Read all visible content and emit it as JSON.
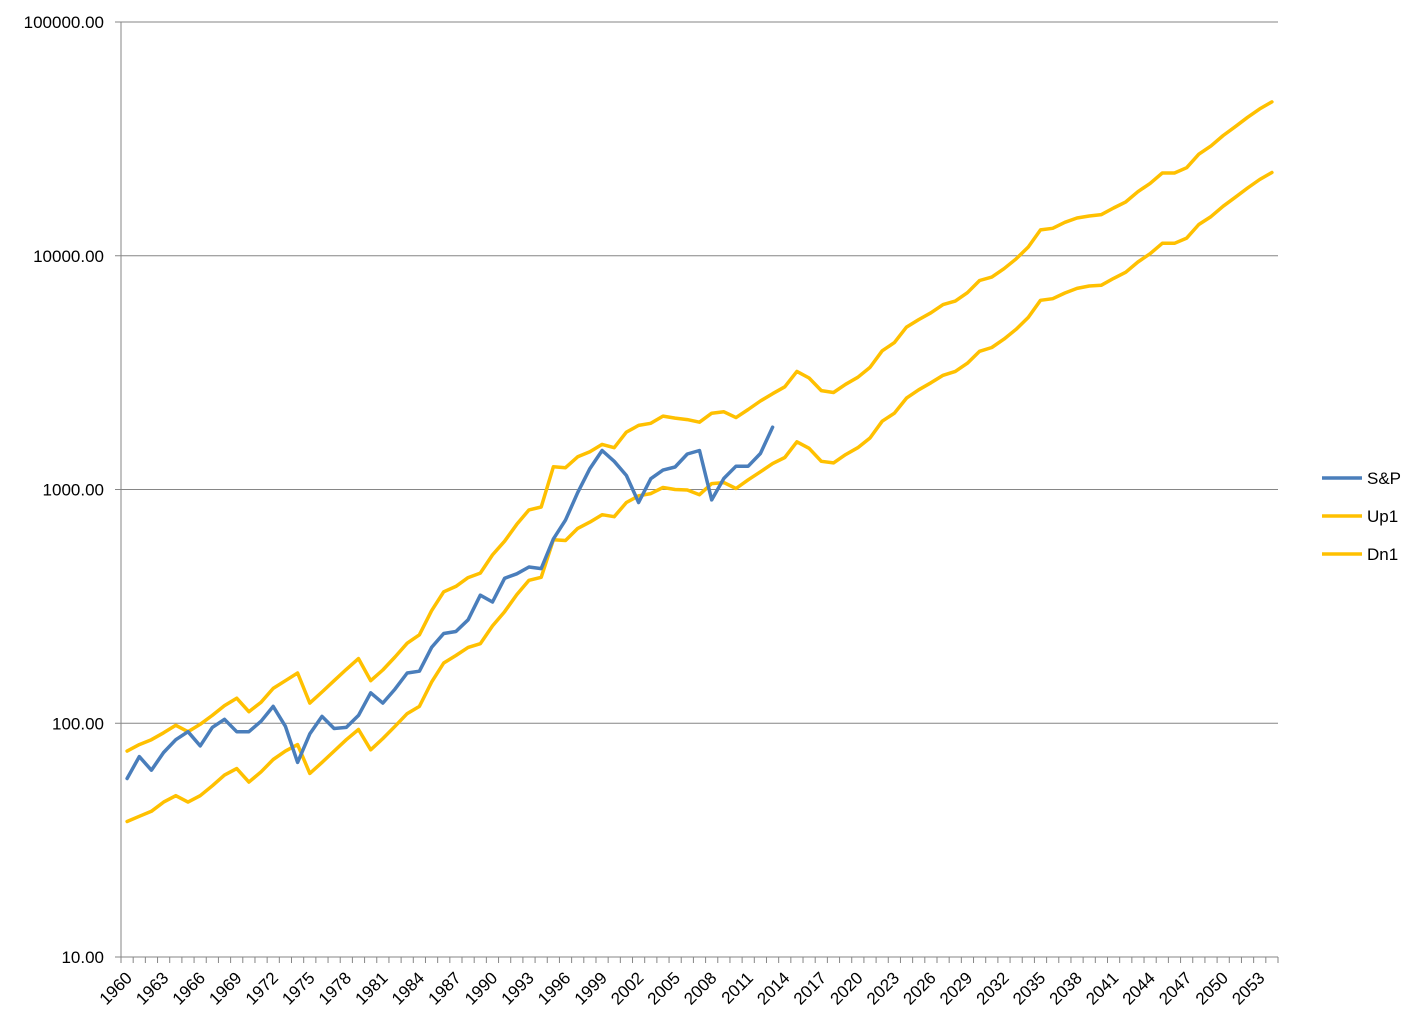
{
  "chart_data": {
    "type": "line",
    "title": "",
    "xlabel": "",
    "ylabel": "",
    "y_scale": "log",
    "ylim": [
      10,
      100000
    ],
    "y_ticks": [
      "10.00",
      "100.00",
      "1000.00",
      "10000.00",
      "100000.00"
    ],
    "y_tick_values": [
      10,
      100,
      1000,
      10000,
      100000
    ],
    "x_start": 1960,
    "x_end": 2054,
    "x_tick_labels": [
      "1960",
      "1963",
      "1966",
      "1969",
      "1972",
      "1975",
      "1978",
      "1981",
      "1984",
      "1987",
      "1990",
      "1993",
      "1996",
      "1999",
      "2002",
      "2005",
      "2008",
      "2011",
      "2014",
      "2017",
      "2020",
      "2023",
      "2026",
      "2029",
      "2032",
      "2035",
      "2038",
      "2041",
      "2044",
      "2047",
      "2050",
      "2053"
    ],
    "grid": "horizontal",
    "legend_position": "right",
    "series": [
      {
        "name": "S&P",
        "color": "#4a7ebb",
        "x": [
          1960,
          1961,
          1962,
          1963,
          1964,
          1965,
          1966,
          1967,
          1968,
          1969,
          1970,
          1971,
          1972,
          1973,
          1974,
          1975,
          1976,
          1977,
          1978,
          1979,
          1980,
          1981,
          1982,
          1983,
          1984,
          1985,
          1986,
          1987,
          1988,
          1989,
          1990,
          1991,
          1992,
          1993,
          1994,
          1995,
          1996,
          1997,
          1998,
          1999,
          2000,
          2001,
          2002,
          2003,
          2004,
          2005,
          2006,
          2007,
          2008,
          2009,
          2010,
          2011,
          2012,
          2013
        ],
        "values": [
          58,
          72,
          63,
          75,
          85,
          92,
          80,
          96,
          104,
          92,
          92,
          102,
          118,
          97,
          68,
          90,
          107,
          95,
          96,
          108,
          135,
          122,
          140,
          164,
          167,
          211,
          242,
          247,
          277,
          353,
          330,
          417,
          436,
          466,
          459,
          615,
          740,
          970,
          1229,
          1469,
          1320,
          1148,
          880,
          1112,
          1211,
          1248,
          1418,
          1468,
          903,
          1115,
          1258,
          1258,
          1426,
          1848
        ]
      },
      {
        "name": "Up1",
        "color": "#ffc000",
        "x": [
          1960,
          1961,
          1962,
          1963,
          1964,
          1965,
          1966,
          1967,
          1968,
          1969,
          1970,
          1971,
          1972,
          1973,
          1974,
          1975,
          1976,
          1977,
          1978,
          1979,
          1980,
          1981,
          1982,
          1983,
          1984,
          1985,
          1986,
          1987,
          1988,
          1989,
          1990,
          1991,
          1992,
          1993,
          1994,
          1995,
          1996,
          1997,
          1998,
          1999,
          2000,
          2001,
          2002,
          2003,
          2004,
          2005,
          2006,
          2007,
          2008,
          2009,
          2010,
          2011,
          2012,
          2013,
          2014,
          2015,
          2016,
          2017,
          2018,
          2019,
          2020,
          2021,
          2022,
          2023,
          2024,
          2025,
          2026,
          2027,
          2028,
          2029,
          2030,
          2031,
          2032,
          2033,
          2034,
          2035,
          2036,
          2037,
          2038,
          2039,
          2040,
          2041,
          2042,
          2043,
          2044,
          2045,
          2046,
          2047,
          2048,
          2049,
          2050,
          2051,
          2052,
          2053,
          2054
        ],
        "values": [
          76,
          81,
          85,
          91,
          98,
          92,
          99,
          108,
          119,
          128,
          112,
          123,
          141,
          152,
          164,
          122,
          136,
          152,
          170,
          189,
          152,
          169,
          192,
          220,
          239,
          303,
          365,
          385,
          420,
          439,
          525,
          601,
          710,
          818,
          842,
          1250,
          1240,
          1380,
          1450,
          1560,
          1510,
          1760,
          1880,
          1920,
          2060,
          2020,
          1990,
          1940,
          2120,
          2150,
          2030,
          2200,
          2390,
          2570,
          2750,
          3200,
          3000,
          2650,
          2600,
          2820,
          3020,
          3330,
          3920,
          4250,
          4950,
          5330,
          5700,
          6180,
          6400,
          6950,
          7840,
          8100,
          8800,
          9700,
          10900,
          12900,
          13100,
          13900,
          14500,
          14800,
          15000,
          16000,
          17000,
          18800,
          20400,
          22600,
          22600,
          23800,
          27200,
          29500,
          32700,
          35700,
          39100,
          42500,
          45500
        ]
      },
      {
        "name": "Dn1",
        "color": "#ffc000",
        "x": [
          1960,
          1961,
          1962,
          1963,
          1964,
          1965,
          1966,
          1967,
          1968,
          1969,
          1970,
          1971,
          1972,
          1973,
          1974,
          1975,
          1976,
          1977,
          1978,
          1979,
          1980,
          1981,
          1982,
          1983,
          1984,
          1985,
          1986,
          1987,
          1988,
          1989,
          1990,
          1991,
          1992,
          1993,
          1994,
          1995,
          1996,
          1997,
          1998,
          1999,
          2000,
          2001,
          2002,
          2003,
          2004,
          2005,
          2006,
          2007,
          2008,
          2009,
          2010,
          2011,
          2012,
          2013,
          2014,
          2015,
          2016,
          2017,
          2018,
          2019,
          2020,
          2021,
          2022,
          2023,
          2024,
          2025,
          2026,
          2027,
          2028,
          2029,
          2030,
          2031,
          2032,
          2033,
          2034,
          2035,
          2036,
          2037,
          2038,
          2039,
          2040,
          2041,
          2042,
          2043,
          2044,
          2045,
          2046,
          2047,
          2048,
          2049,
          2050,
          2051,
          2052,
          2053,
          2054
        ],
        "values": [
          38,
          40,
          42,
          46,
          49,
          46,
          49,
          54,
          60,
          64,
          56,
          62,
          70,
          76,
          81,
          61,
          68,
          76,
          85,
          94,
          77,
          86,
          97,
          110,
          118,
          150,
          181,
          195,
          211,
          219,
          261,
          300,
          355,
          409,
          421,
          610,
          605,
          682,
          725,
          780,
          765,
          880,
          940,
          960,
          1020,
          1000,
          995,
          950,
          1060,
          1070,
          1010,
          1100,
          1190,
          1290,
          1370,
          1600,
          1500,
          1320,
          1300,
          1410,
          1510,
          1660,
          1960,
          2120,
          2460,
          2670,
          2860,
          3080,
          3200,
          3470,
          3900,
          4050,
          4400,
          4850,
          5450,
          6450,
          6550,
          6930,
          7250,
          7420,
          7480,
          8000,
          8500,
          9400,
          10200,
          11300,
          11300,
          11900,
          13600,
          14700,
          16300,
          17800,
          19500,
          21200,
          22700
        ]
      }
    ]
  }
}
